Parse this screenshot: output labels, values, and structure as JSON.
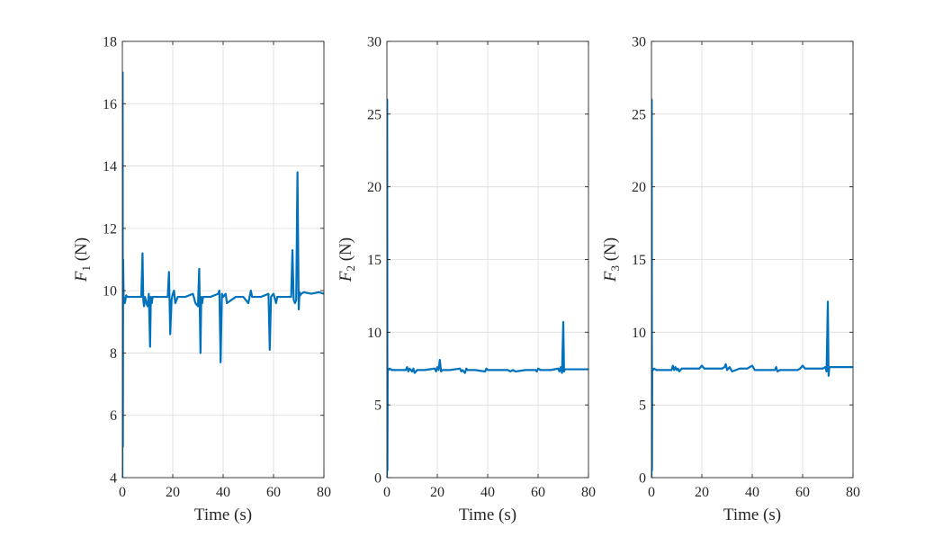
{
  "chart_data": [
    {
      "type": "line",
      "ylabel_var": "F",
      "ylabel_sub": "1",
      "ylabel_unit": " (N)",
      "xlabel": "Time (s)",
      "xlim": [
        0,
        80
      ],
      "ylim": [
        4,
        18
      ],
      "xticks": [
        0,
        20,
        40,
        60,
        80
      ],
      "yticks": [
        4,
        6,
        8,
        10,
        12,
        14,
        16,
        18
      ],
      "grid": true,
      "color": "#0072BD",
      "x": [
        0,
        0.1,
        0.2,
        0.3,
        0.5,
        1,
        1.5,
        2,
        5,
        7.5,
        8,
        8.3,
        8.6,
        9,
        9.5,
        10,
        10.5,
        11,
        11.3,
        11.7,
        12,
        15,
        18,
        18.5,
        19,
        19.5,
        20,
        20.5,
        21,
        22,
        22.5,
        25,
        28,
        29,
        30,
        30.5,
        31,
        31.3,
        31.7,
        32,
        35,
        38,
        38.5,
        39,
        39.5,
        40,
        41,
        41.5,
        45,
        48,
        49,
        50,
        51,
        51.5,
        55,
        58,
        58.5,
        59,
        60,
        61,
        61.5,
        65,
        67,
        67.5,
        68,
        68.5,
        69,
        69.5,
        70,
        70.3,
        70.6,
        71,
        72,
        75,
        78,
        80
      ],
      "y": [
        4,
        17,
        5,
        11,
        9.8,
        9.6,
        9.85,
        9.8,
        9.8,
        9.8,
        11.2,
        9.7,
        9.5,
        9.8,
        9.6,
        9.5,
        9.9,
        8.2,
        9.8,
        9.6,
        9.8,
        9.8,
        9.8,
        10.6,
        8.6,
        9.7,
        9.9,
        10,
        9.6,
        9.8,
        9.8,
        9.8,
        9.9,
        9.6,
        9.5,
        10.7,
        8,
        9.8,
        9.6,
        9.8,
        9.8,
        9.9,
        10,
        7.7,
        9.9,
        9.8,
        9.9,
        9.6,
        9.8,
        9.8,
        9.7,
        9.6,
        10,
        9.8,
        9.8,
        9.9,
        8.1,
        9.8,
        9.9,
        9.6,
        9.8,
        9.8,
        9.8,
        11.3,
        9.7,
        9.6,
        9.7,
        13.8,
        9.4,
        9.95,
        9.85,
        9.9,
        9.95,
        9.9,
        9.95,
        9.9
      ]
    },
    {
      "type": "line",
      "ylabel_var": "F",
      "ylabel_sub": "2",
      "ylabel_unit": " (N)",
      "xlabel": "Time (s)",
      "xlim": [
        0,
        80
      ],
      "ylim": [
        0,
        30
      ],
      "xticks": [
        0,
        20,
        40,
        60,
        80
      ],
      "yticks": [
        0,
        5,
        10,
        15,
        20,
        25,
        30
      ],
      "grid": true,
      "color": "#0072BD",
      "x": [
        0,
        0.1,
        0.2,
        0.3,
        0.6,
        1,
        2,
        5,
        7.5,
        8,
        8.5,
        9,
        9.5,
        10,
        10.5,
        11,
        12,
        15,
        19,
        19.5,
        20,
        20.5,
        21,
        21.5,
        22,
        25,
        29,
        29.5,
        30,
        31,
        31.5,
        32,
        35,
        39,
        39.5,
        40,
        41,
        45,
        48,
        49,
        50,
        51,
        55,
        59,
        59.5,
        60,
        61,
        65,
        68,
        68.5,
        69,
        69.5,
        70,
        70.3,
        70.6,
        71,
        75,
        80
      ],
      "y": [
        0,
        26,
        0.5,
        7.5,
        7.4,
        7.5,
        7.4,
        7.4,
        7.4,
        7.6,
        7.3,
        7.5,
        7.4,
        7.3,
        7.5,
        7.2,
        7.4,
        7.4,
        7.5,
        7.3,
        7.6,
        7.4,
        8.1,
        7.3,
        7.4,
        7.4,
        7.5,
        7.3,
        7.4,
        7.2,
        7.5,
        7.4,
        7.4,
        7.3,
        7.5,
        7.4,
        7.4,
        7.4,
        7.4,
        7.3,
        7.4,
        7.3,
        7.4,
        7.4,
        7.3,
        7.5,
        7.4,
        7.4,
        7.5,
        7.3,
        7.6,
        7.2,
        10.7,
        7.3,
        7.45,
        7.45,
        7.45,
        7.45
      ]
    },
    {
      "type": "line",
      "ylabel_var": "F",
      "ylabel_sub": "3",
      "ylabel_unit": " (N)",
      "xlabel": "Time (s)",
      "xlim": [
        0,
        80
      ],
      "ylim": [
        0,
        30
      ],
      "xticks": [
        0,
        20,
        40,
        60,
        80
      ],
      "yticks": [
        0,
        5,
        10,
        15,
        20,
        25,
        30
      ],
      "grid": true,
      "color": "#0072BD",
      "x": [
        0,
        0.1,
        0.2,
        0.3,
        0.6,
        1,
        2,
        5,
        8,
        8.5,
        9,
        9.5,
        10,
        10.5,
        11,
        12,
        15,
        18,
        19,
        19.5,
        20,
        21,
        22,
        25,
        28,
        29,
        29.5,
        30,
        31,
        32,
        35,
        38,
        39,
        40,
        41,
        45,
        49,
        49.5,
        50,
        51,
        55,
        58,
        59,
        60,
        61,
        65,
        68,
        69,
        69.5,
        70,
        70.3,
        70.6,
        71,
        75,
        80
      ],
      "y": [
        0,
        26,
        0.5,
        7.5,
        7.4,
        7.5,
        7.4,
        7.4,
        7.4,
        7.7,
        7.4,
        7.6,
        7.4,
        7.5,
        7.3,
        7.5,
        7.5,
        7.5,
        7.5,
        7.6,
        7.7,
        7.5,
        7.5,
        7.5,
        7.5,
        7.6,
        7.8,
        7.4,
        7.6,
        7.3,
        7.5,
        7.5,
        7.6,
        7.7,
        7.4,
        7.4,
        7.4,
        7.6,
        7.3,
        7.4,
        7.4,
        7.4,
        7.5,
        7.7,
        7.5,
        7.5,
        7.5,
        7.6,
        7.3,
        12.1,
        7,
        7.6,
        7.6,
        7.6,
        7.6
      ]
    }
  ]
}
